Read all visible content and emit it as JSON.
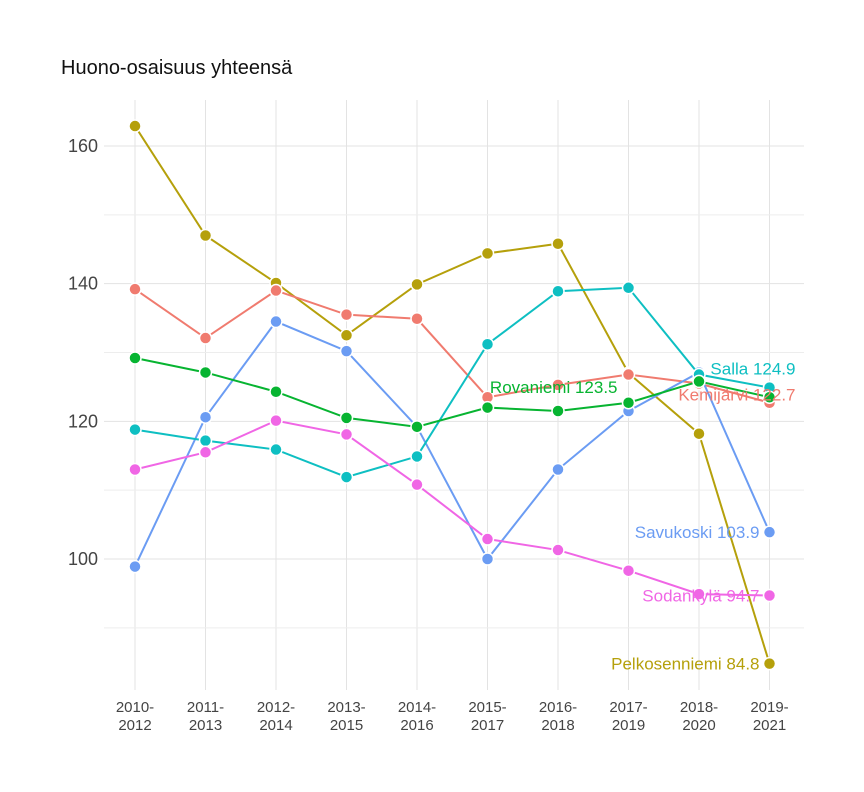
{
  "chart_data": {
    "type": "line",
    "title": "Huono-osaisuus yhteensä",
    "xlabel": "",
    "ylabel": "",
    "x": [
      [
        "2010-",
        "2012"
      ],
      [
        "2011-",
        "2013"
      ],
      [
        "2012-",
        "2014"
      ],
      [
        "2013-",
        "2015"
      ],
      [
        "2014-",
        "2016"
      ],
      [
        "2015-",
        "2017"
      ],
      [
        "2016-",
        "2018"
      ],
      [
        "2017-",
        "2019"
      ],
      [
        "2018-",
        "2020"
      ],
      [
        "2019-",
        "2021"
      ]
    ],
    "yticks": [
      100,
      120,
      140,
      160
    ],
    "ylim": [
      85,
      163
    ],
    "grid": true,
    "legend": "none (end labels)",
    "series": [
      {
        "name": "Pelkosenniemi",
        "end_label": "Pelkosenniemi 84.8",
        "color": "#b5a00b",
        "values": [
          162.9,
          147.0,
          140.1,
          132.5,
          139.9,
          144.4,
          145.8,
          127.0,
          118.2,
          84.8
        ]
      },
      {
        "name": "Kemijärvi",
        "end_label": "Kemijärvi 122.7",
        "color": "#f07b6f",
        "values": [
          139.2,
          132.1,
          139.0,
          135.5,
          134.9,
          123.5,
          125.3,
          126.8,
          125.5,
          122.7
        ]
      },
      {
        "name": "Savukoski",
        "end_label": "Savukoski 103.9",
        "color": "#6b9cf3",
        "values": [
          98.9,
          120.6,
          134.5,
          130.2,
          119.2,
          100.0,
          113.0,
          121.5,
          127.1,
          103.9
        ]
      },
      {
        "name": "Salla",
        "end_label": "Salla 124.9",
        "color": "#0ebfc2",
        "values": [
          118.8,
          117.2,
          115.9,
          111.9,
          114.9,
          131.2,
          138.9,
          139.4,
          126.8,
          124.9
        ]
      },
      {
        "name": "Rovaniemi",
        "end_label": "Rovaniemi 123.5",
        "color": "#07b431",
        "values": [
          129.2,
          127.1,
          124.3,
          120.5,
          119.2,
          122.0,
          121.5,
          122.7,
          125.8,
          123.5
        ]
      },
      {
        "name": "Sodankylä",
        "end_label": "Sodankylä 94.7",
        "color": "#f066e5",
        "values": [
          113.0,
          115.5,
          120.1,
          118.1,
          110.8,
          102.9,
          101.3,
          98.3,
          94.9,
          94.7
        ]
      }
    ]
  }
}
